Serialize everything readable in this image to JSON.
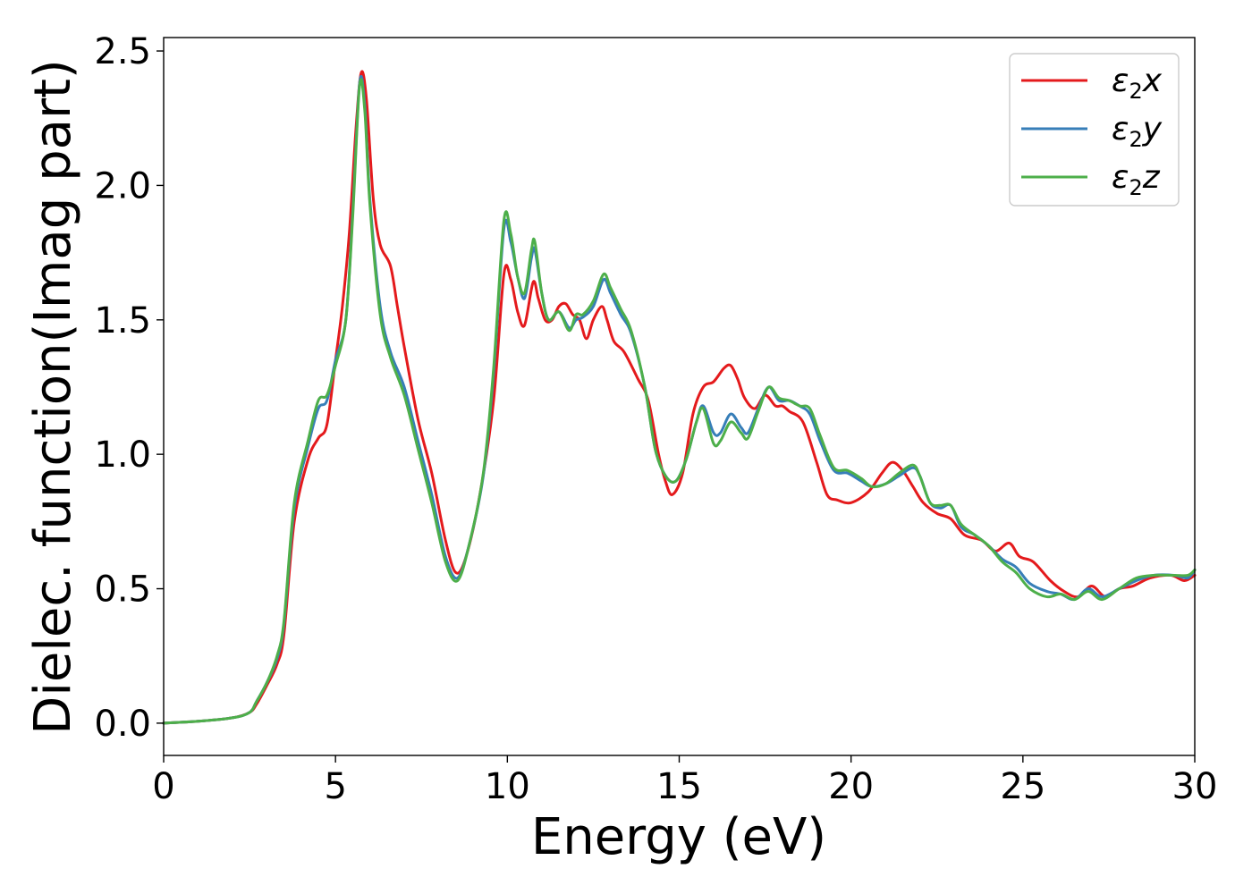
{
  "chart_data": {
    "type": "line",
    "title": "",
    "xlabel": "Energy (eV)",
    "ylabel": "Dielec. function(Imag part)",
    "xlim": [
      0,
      30
    ],
    "ylim": [
      -0.12,
      2.55
    ],
    "xticks": [
      0,
      5,
      10,
      15,
      20,
      25,
      30
    ],
    "xtick_labels": [
      "0",
      "5",
      "10",
      "15",
      "20",
      "25",
      "30"
    ],
    "yticks": [
      0.0,
      0.5,
      1.0,
      1.5,
      2.0,
      2.5
    ],
    "ytick_labels": [
      "0.0",
      "0.5",
      "1.0",
      "1.5",
      "2.0",
      "2.5"
    ],
    "grid": false,
    "legend_position": "top-right",
    "series": [
      {
        "name": "x",
        "legend_symbol": "ε",
        "legend_subscript": "2",
        "legend_suffix": "x",
        "color": "#e41a1c",
        "points": [
          [
            0,
            0
          ],
          [
            1,
            0.007
          ],
          [
            2,
            0.02
          ],
          [
            2.5,
            0.04
          ],
          [
            2.7,
            0.07
          ],
          [
            3.0,
            0.14
          ],
          [
            3.3,
            0.22
          ],
          [
            3.5,
            0.33
          ],
          [
            3.8,
            0.75
          ],
          [
            4.2,
            0.98
          ],
          [
            4.5,
            1.06
          ],
          [
            4.75,
            1.11
          ],
          [
            5.0,
            1.35
          ],
          [
            5.2,
            1.55
          ],
          [
            5.4,
            1.82
          ],
          [
            5.6,
            2.22
          ],
          [
            5.75,
            2.42
          ],
          [
            5.9,
            2.32
          ],
          [
            6.1,
            1.95
          ],
          [
            6.3,
            1.78
          ],
          [
            6.6,
            1.7
          ],
          [
            6.8,
            1.55
          ],
          [
            7.0,
            1.4
          ],
          [
            7.4,
            1.13
          ],
          [
            7.8,
            0.93
          ],
          [
            8.2,
            0.68
          ],
          [
            8.5,
            0.56
          ],
          [
            8.8,
            0.62
          ],
          [
            9.2,
            0.85
          ],
          [
            9.6,
            1.2
          ],
          [
            9.9,
            1.67
          ],
          [
            10.1,
            1.65
          ],
          [
            10.3,
            1.53
          ],
          [
            10.5,
            1.48
          ],
          [
            10.75,
            1.64
          ],
          [
            10.9,
            1.58
          ],
          [
            11.1,
            1.5
          ],
          [
            11.3,
            1.5
          ],
          [
            11.5,
            1.55
          ],
          [
            11.7,
            1.56
          ],
          [
            11.9,
            1.52
          ],
          [
            12.1,
            1.5
          ],
          [
            12.3,
            1.43
          ],
          [
            12.5,
            1.5
          ],
          [
            12.75,
            1.55
          ],
          [
            12.9,
            1.5
          ],
          [
            13.1,
            1.42
          ],
          [
            13.4,
            1.38
          ],
          [
            13.8,
            1.28
          ],
          [
            14.1,
            1.2
          ],
          [
            14.4,
            1.0
          ],
          [
            14.6,
            0.9
          ],
          [
            14.8,
            0.85
          ],
          [
            15.1,
            0.93
          ],
          [
            15.4,
            1.15
          ],
          [
            15.7,
            1.25
          ],
          [
            16.0,
            1.27
          ],
          [
            16.3,
            1.32
          ],
          [
            16.5,
            1.33
          ],
          [
            16.7,
            1.28
          ],
          [
            16.9,
            1.21
          ],
          [
            17.2,
            1.17
          ],
          [
            17.5,
            1.22
          ],
          [
            17.8,
            1.18
          ],
          [
            18.0,
            1.18
          ],
          [
            18.2,
            1.16
          ],
          [
            18.6,
            1.12
          ],
          [
            19.0,
            0.97
          ],
          [
            19.3,
            0.85
          ],
          [
            19.6,
            0.83
          ],
          [
            20.0,
            0.82
          ],
          [
            20.5,
            0.86
          ],
          [
            20.9,
            0.93
          ],
          [
            21.2,
            0.97
          ],
          [
            21.5,
            0.94
          ],
          [
            21.8,
            0.88
          ],
          [
            22.1,
            0.82
          ],
          [
            22.5,
            0.78
          ],
          [
            22.9,
            0.76
          ],
          [
            23.3,
            0.7
          ],
          [
            23.8,
            0.68
          ],
          [
            24.2,
            0.64
          ],
          [
            24.6,
            0.67
          ],
          [
            24.9,
            0.62
          ],
          [
            25.3,
            0.6
          ],
          [
            25.8,
            0.53
          ],
          [
            26.2,
            0.49
          ],
          [
            26.6,
            0.47
          ],
          [
            27.0,
            0.51
          ],
          [
            27.4,
            0.47
          ],
          [
            27.8,
            0.5
          ],
          [
            28.2,
            0.51
          ],
          [
            28.7,
            0.54
          ],
          [
            29.3,
            0.55
          ],
          [
            29.7,
            0.53
          ],
          [
            30,
            0.55
          ]
        ]
      },
      {
        "name": "y",
        "legend_symbol": "ε",
        "legend_subscript": "2",
        "legend_suffix": "y",
        "color": "#377eb8",
        "points": [
          [
            0,
            0
          ],
          [
            1,
            0.007
          ],
          [
            2,
            0.02
          ],
          [
            2.5,
            0.04
          ],
          [
            2.7,
            0.08
          ],
          [
            3.0,
            0.15
          ],
          [
            3.3,
            0.24
          ],
          [
            3.5,
            0.37
          ],
          [
            3.8,
            0.8
          ],
          [
            4.2,
            1.03
          ],
          [
            4.5,
            1.17
          ],
          [
            4.75,
            1.2
          ],
          [
            5.0,
            1.35
          ],
          [
            5.3,
            1.5
          ],
          [
            5.5,
            1.9
          ],
          [
            5.7,
            2.38
          ],
          [
            5.85,
            2.3
          ],
          [
            6.0,
            1.95
          ],
          [
            6.3,
            1.55
          ],
          [
            6.6,
            1.38
          ],
          [
            7.0,
            1.25
          ],
          [
            7.4,
            1.05
          ],
          [
            7.8,
            0.85
          ],
          [
            8.2,
            0.62
          ],
          [
            8.55,
            0.54
          ],
          [
            8.9,
            0.67
          ],
          [
            9.3,
            0.92
          ],
          [
            9.6,
            1.3
          ],
          [
            9.9,
            1.84
          ],
          [
            10.1,
            1.79
          ],
          [
            10.3,
            1.66
          ],
          [
            10.5,
            1.58
          ],
          [
            10.7,
            1.73
          ],
          [
            10.8,
            1.76
          ],
          [
            11.0,
            1.6
          ],
          [
            11.2,
            1.5
          ],
          [
            11.5,
            1.53
          ],
          [
            11.8,
            1.47
          ],
          [
            12.0,
            1.5
          ],
          [
            12.2,
            1.51
          ],
          [
            12.5,
            1.55
          ],
          [
            12.8,
            1.65
          ],
          [
            13.0,
            1.6
          ],
          [
            13.3,
            1.52
          ],
          [
            13.6,
            1.45
          ],
          [
            14.0,
            1.25
          ],
          [
            14.3,
            1.02
          ],
          [
            14.6,
            0.92
          ],
          [
            14.9,
            0.9
          ],
          [
            15.2,
            0.98
          ],
          [
            15.5,
            1.12
          ],
          [
            15.7,
            1.18
          ],
          [
            16.0,
            1.08
          ],
          [
            16.2,
            1.08
          ],
          [
            16.5,
            1.15
          ],
          [
            16.8,
            1.1
          ],
          [
            17.0,
            1.08
          ],
          [
            17.3,
            1.17
          ],
          [
            17.6,
            1.25
          ],
          [
            17.9,
            1.2
          ],
          [
            18.2,
            1.2
          ],
          [
            18.5,
            1.18
          ],
          [
            18.8,
            1.15
          ],
          [
            19.1,
            1.05
          ],
          [
            19.5,
            0.94
          ],
          [
            19.9,
            0.93
          ],
          [
            20.3,
            0.9
          ],
          [
            20.6,
            0.88
          ],
          [
            21.0,
            0.89
          ],
          [
            21.4,
            0.92
          ],
          [
            21.8,
            0.95
          ],
          [
            22.0,
            0.92
          ],
          [
            22.3,
            0.82
          ],
          [
            22.6,
            0.8
          ],
          [
            22.9,
            0.81
          ],
          [
            23.2,
            0.73
          ],
          [
            23.6,
            0.7
          ],
          [
            24.0,
            0.66
          ],
          [
            24.4,
            0.61
          ],
          [
            24.8,
            0.58
          ],
          [
            25.2,
            0.52
          ],
          [
            25.7,
            0.49
          ],
          [
            26.1,
            0.48
          ],
          [
            26.5,
            0.46
          ],
          [
            26.9,
            0.5
          ],
          [
            27.3,
            0.47
          ],
          [
            27.8,
            0.5
          ],
          [
            28.3,
            0.53
          ],
          [
            28.8,
            0.55
          ],
          [
            29.4,
            0.55
          ],
          [
            29.8,
            0.54
          ],
          [
            30,
            0.57
          ]
        ]
      },
      {
        "name": "z",
        "legend_symbol": "ε",
        "legend_subscript": "2",
        "legend_suffix": "z",
        "color": "#4daf4a",
        "points": [
          [
            0,
            0
          ],
          [
            1,
            0.007
          ],
          [
            2,
            0.02
          ],
          [
            2.5,
            0.04
          ],
          [
            2.7,
            0.08
          ],
          [
            3.0,
            0.15
          ],
          [
            3.3,
            0.25
          ],
          [
            3.5,
            0.38
          ],
          [
            3.8,
            0.82
          ],
          [
            4.2,
            1.05
          ],
          [
            4.5,
            1.2
          ],
          [
            4.75,
            1.22
          ],
          [
            5.0,
            1.33
          ],
          [
            5.3,
            1.5
          ],
          [
            5.5,
            1.88
          ],
          [
            5.7,
            2.37
          ],
          [
            5.85,
            2.28
          ],
          [
            6.0,
            1.93
          ],
          [
            6.3,
            1.52
          ],
          [
            6.6,
            1.36
          ],
          [
            7.0,
            1.22
          ],
          [
            7.4,
            1.02
          ],
          [
            7.8,
            0.82
          ],
          [
            8.2,
            0.6
          ],
          [
            8.55,
            0.53
          ],
          [
            8.9,
            0.67
          ],
          [
            9.3,
            0.93
          ],
          [
            9.6,
            1.32
          ],
          [
            9.9,
            1.87
          ],
          [
            10.1,
            1.82
          ],
          [
            10.3,
            1.66
          ],
          [
            10.5,
            1.6
          ],
          [
            10.7,
            1.76
          ],
          [
            10.8,
            1.79
          ],
          [
            11.0,
            1.6
          ],
          [
            11.2,
            1.5
          ],
          [
            11.5,
            1.53
          ],
          [
            11.8,
            1.46
          ],
          [
            12.0,
            1.52
          ],
          [
            12.2,
            1.52
          ],
          [
            12.5,
            1.57
          ],
          [
            12.8,
            1.67
          ],
          [
            13.0,
            1.62
          ],
          [
            13.3,
            1.54
          ],
          [
            13.6,
            1.46
          ],
          [
            14.0,
            1.25
          ],
          [
            14.3,
            1.02
          ],
          [
            14.6,
            0.92
          ],
          [
            14.9,
            0.9
          ],
          [
            15.2,
            0.98
          ],
          [
            15.5,
            1.12
          ],
          [
            15.7,
            1.17
          ],
          [
            16.0,
            1.04
          ],
          [
            16.2,
            1.05
          ],
          [
            16.5,
            1.12
          ],
          [
            16.8,
            1.08
          ],
          [
            17.0,
            1.06
          ],
          [
            17.3,
            1.16
          ],
          [
            17.6,
            1.25
          ],
          [
            17.9,
            1.21
          ],
          [
            18.2,
            1.2
          ],
          [
            18.5,
            1.18
          ],
          [
            18.8,
            1.17
          ],
          [
            19.1,
            1.07
          ],
          [
            19.5,
            0.95
          ],
          [
            19.9,
            0.94
          ],
          [
            20.3,
            0.91
          ],
          [
            20.6,
            0.88
          ],
          [
            21.0,
            0.89
          ],
          [
            21.4,
            0.93
          ],
          [
            21.8,
            0.96
          ],
          [
            22.0,
            0.92
          ],
          [
            22.3,
            0.82
          ],
          [
            22.6,
            0.81
          ],
          [
            22.9,
            0.81
          ],
          [
            23.2,
            0.74
          ],
          [
            23.6,
            0.7
          ],
          [
            24.0,
            0.66
          ],
          [
            24.4,
            0.6
          ],
          [
            24.8,
            0.56
          ],
          [
            25.2,
            0.5
          ],
          [
            25.7,
            0.47
          ],
          [
            26.1,
            0.48
          ],
          [
            26.5,
            0.46
          ],
          [
            26.9,
            0.49
          ],
          [
            27.3,
            0.46
          ],
          [
            27.8,
            0.5
          ],
          [
            28.3,
            0.54
          ],
          [
            28.8,
            0.55
          ],
          [
            29.4,
            0.55
          ],
          [
            29.8,
            0.55
          ],
          [
            30,
            0.57
          ]
        ]
      }
    ]
  }
}
